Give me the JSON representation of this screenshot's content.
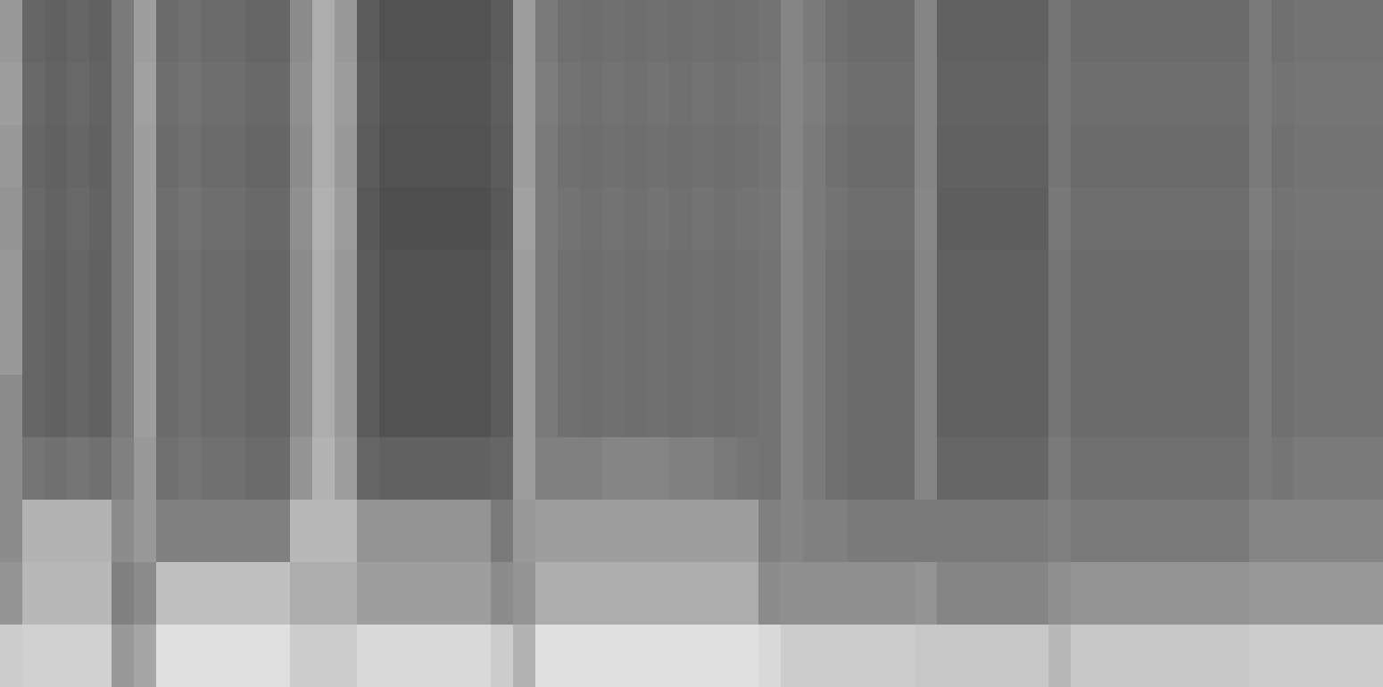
{
  "chart_data": {
    "type": "heatmap",
    "tick_labels": false,
    "zlim": [
      0,
      100
    ],
    "values": [
      [
        60,
        40,
        38,
        40,
        38,
        48,
        62,
        42,
        44,
        42,
        42,
        40,
        40,
        55,
        68,
        60,
        36,
        32,
        32,
        32,
        32,
        32,
        36,
        62,
        48,
        44,
        43,
        44,
        43,
        44,
        43,
        44,
        43,
        44,
        45,
        52,
        48,
        44,
        42,
        42,
        42,
        52,
        38,
        38,
        38,
        38,
        38,
        46,
        42,
        42,
        42,
        42,
        42,
        42,
        42,
        42,
        48,
        44,
        45,
        45,
        45,
        45
      ],
      [
        62,
        41,
        39,
        41,
        39,
        48,
        63,
        43,
        45,
        43,
        43,
        41,
        41,
        56,
        68,
        61,
        37,
        33,
        33,
        33,
        33,
        33,
        37,
        62,
        49,
        45,
        44,
        45,
        44,
        45,
        44,
        45,
        44,
        45,
        46,
        52,
        49,
        45,
        43,
        43,
        43,
        52,
        39,
        39,
        39,
        39,
        39,
        46,
        43,
        43,
        43,
        43,
        43,
        43,
        43,
        43,
        48,
        45,
        46,
        46,
        46,
        46
      ],
      [
        60,
        40,
        38,
        40,
        38,
        48,
        62,
        42,
        44,
        42,
        42,
        40,
        40,
        55,
        68,
        60,
        36,
        32,
        32,
        32,
        32,
        32,
        36,
        62,
        48,
        44,
        43,
        44,
        43,
        44,
        43,
        44,
        43,
        44,
        45,
        52,
        48,
        44,
        42,
        42,
        42,
        52,
        38,
        38,
        38,
        38,
        38,
        46,
        42,
        42,
        42,
        42,
        42,
        42,
        42,
        42,
        48,
        44,
        45,
        45,
        45,
        45
      ],
      [
        58,
        41,
        39,
        41,
        39,
        48,
        62,
        43,
        45,
        43,
        43,
        41,
        41,
        56,
        69,
        61,
        35,
        31,
        31,
        31,
        31,
        31,
        35,
        63,
        48,
        45,
        44,
        45,
        44,
        45,
        44,
        45,
        44,
        45,
        46,
        53,
        48,
        45,
        43,
        43,
        43,
        53,
        37,
        37,
        37,
        37,
        37,
        47,
        43,
        43,
        43,
        43,
        43,
        43,
        43,
        43,
        49,
        45,
        46,
        46,
        46,
        46
      ],
      [
        60,
        40,
        38,
        40,
        38,
        48,
        62,
        42,
        44,
        42,
        42,
        40,
        40,
        55,
        68,
        60,
        36,
        32,
        32,
        32,
        32,
        32,
        36,
        62,
        48,
        44,
        43,
        44,
        43,
        44,
        43,
        44,
        43,
        44,
        45,
        52,
        48,
        44,
        42,
        42,
        42,
        52,
        38,
        38,
        38,
        38,
        38,
        46,
        42,
        42,
        42,
        42,
        42,
        42,
        42,
        42,
        48,
        44,
        45,
        45,
        45,
        45
      ],
      [
        60,
        40,
        38,
        40,
        38,
        48,
        62,
        42,
        44,
        42,
        42,
        40,
        40,
        55,
        68,
        60,
        36,
        32,
        32,
        32,
        32,
        32,
        36,
        62,
        48,
        44,
        43,
        44,
        43,
        44,
        43,
        44,
        43,
        44,
        45,
        52,
        48,
        44,
        42,
        42,
        42,
        52,
        38,
        38,
        38,
        38,
        38,
        46,
        42,
        42,
        42,
        42,
        42,
        42,
        42,
        42,
        48,
        44,
        45,
        45,
        45,
        45
      ],
      [
        55,
        40,
        38,
        40,
        38,
        48,
        62,
        42,
        44,
        42,
        42,
        40,
        40,
        55,
        68,
        60,
        36,
        32,
        32,
        32,
        32,
        32,
        36,
        62,
        48,
        44,
        43,
        44,
        43,
        44,
        43,
        44,
        43,
        44,
        45,
        52,
        48,
        44,
        42,
        42,
        42,
        52,
        38,
        38,
        38,
        38,
        38,
        46,
        42,
        42,
        42,
        42,
        42,
        42,
        42,
        42,
        48,
        44,
        45,
        45,
        45,
        45
      ],
      [
        55,
        46,
        44,
        46,
        44,
        50,
        60,
        44,
        46,
        44,
        44,
        42,
        42,
        58,
        70,
        62,
        40,
        38,
        38,
        38,
        38,
        38,
        40,
        62,
        50,
        50,
        50,
        52,
        52,
        52,
        50,
        50,
        48,
        46,
        45,
        52,
        48,
        44,
        42,
        42,
        42,
        52,
        40,
        40,
        40,
        40,
        40,
        48,
        44,
        44,
        44,
        44,
        44,
        44,
        44,
        44,
        48,
        46,
        48,
        48,
        48,
        48
      ],
      [
        55,
        70,
        70,
        70,
        70,
        55,
        60,
        50,
        50,
        50,
        50,
        50,
        50,
        72,
        72,
        72,
        58,
        58,
        58,
        58,
        58,
        58,
        48,
        60,
        62,
        62,
        62,
        62,
        62,
        62,
        62,
        62,
        62,
        62,
        50,
        52,
        50,
        50,
        48,
        48,
        48,
        48,
        48,
        48,
        48,
        48,
        48,
        50,
        48,
        48,
        48,
        48,
        48,
        48,
        48,
        48,
        52,
        52,
        52,
        52,
        52,
        52
      ],
      [
        58,
        72,
        72,
        72,
        72,
        50,
        55,
        75,
        75,
        75,
        75,
        75,
        75,
        68,
        68,
        68,
        62,
        62,
        62,
        62,
        62,
        62,
        55,
        58,
        68,
        68,
        68,
        68,
        68,
        68,
        68,
        68,
        68,
        68,
        55,
        56,
        56,
        56,
        56,
        56,
        56,
        58,
        52,
        52,
        52,
        52,
        52,
        56,
        58,
        58,
        58,
        58,
        58,
        58,
        58,
        58,
        60,
        60,
        60,
        60,
        60,
        60
      ],
      [
        80,
        82,
        82,
        82,
        82,
        60,
        65,
        88,
        88,
        88,
        88,
        88,
        88,
        80,
        80,
        80,
        85,
        85,
        85,
        85,
        85,
        85,
        80,
        70,
        88,
        88,
        88,
        88,
        88,
        88,
        88,
        88,
        88,
        88,
        85,
        80,
        80,
        80,
        80,
        80,
        80,
        78,
        78,
        78,
        78,
        78,
        78,
        72,
        78,
        78,
        78,
        78,
        78,
        78,
        78,
        78,
        80,
        80,
        80,
        80,
        80,
        80
      ]
    ]
  }
}
